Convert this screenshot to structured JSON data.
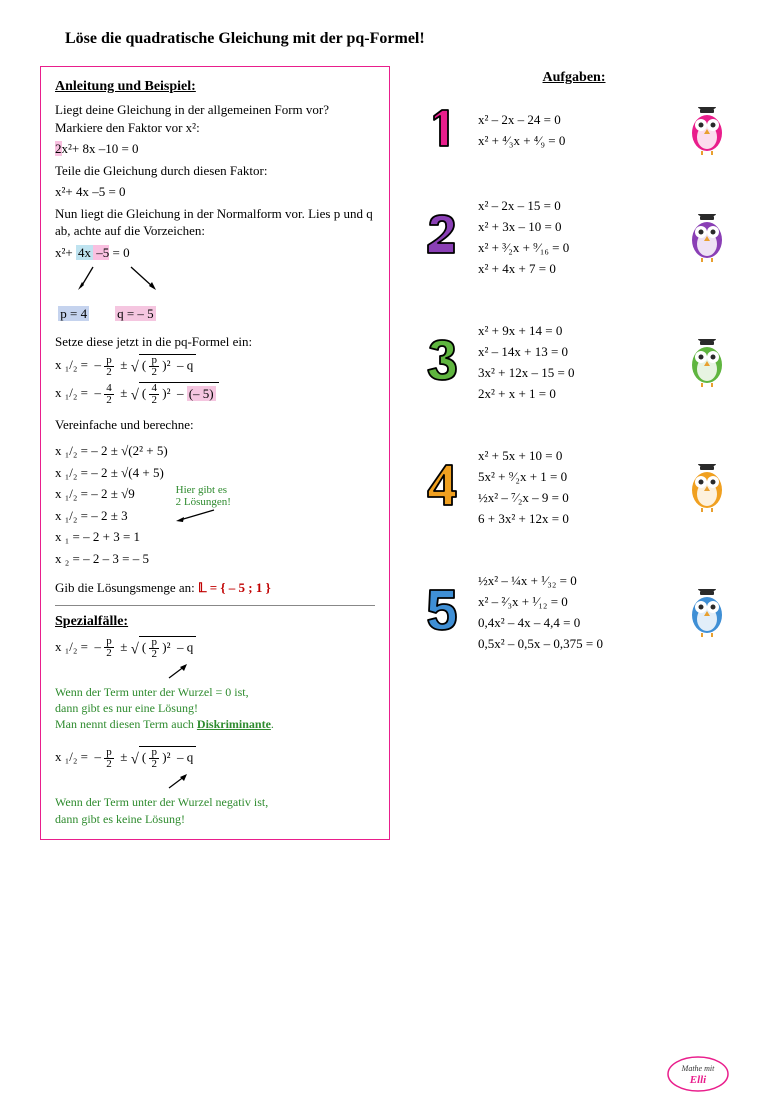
{
  "title": "Löse die quadratische Gleichung mit der pq-Formel!",
  "left": {
    "heading": "Anleitung und Beispiel:",
    "intro1": "Liegt deine Gleichung in der allgemeinen Form vor? Markiere den Faktor vor x²:",
    "eq1_prefix": "2",
    "eq1_rest": "x²+ 8x –10  =  0",
    "intro2": "Teile die Gleichung durch diesen Faktor:",
    "eq2": "x²+ 4x –5  =  0",
    "intro3": "Nun liegt die Gleichung in der Normalform vor. Lies p und q ab, achte auf die Vorzeichen:",
    "eq3_a": "x²+ ",
    "eq3_b": "4x",
    "eq3_c": " –5",
    "eq3_d": "  =  0",
    "p_label": "p = 4",
    "q_label": "q = – 5",
    "intro4": "Setze diese jetzt in die pq-Formel ein:",
    "formula_x12": "x ₁/₂  =",
    "intro5": "Vereinfache und berechne:",
    "simp1": "x ₁/₂  =  – 2  ±  √(2² + 5)",
    "simp2": "x ₁/₂  =  – 2  ±  √(4 + 5)",
    "simp3": "x ₁/₂  =  – 2  ±  √9",
    "simp4": "x ₁/₂  =  – 2  ±  3",
    "simp5": "x ₁  =  – 2  + 3  =  1",
    "simp6": "x ₂  =  – 2  – 3  =  – 5",
    "note_green1": "Hier gibt es",
    "note_green2": "2 Lösungen!",
    "intro6": "Gib die Lösungsmenge an:  ",
    "solution": "𝕃 = { – 5 ; 1 }",
    "special_heading": "Spezialfälle:",
    "special_text1a": "Wenn der Term unter der Wurzel = 0 ist,",
    "special_text1b": "dann gibt es nur eine Lösung!",
    "special_text1c": "Man nennt diesen Term auch ",
    "discriminant": "Diskriminante",
    "special_text2a": "Wenn der Term unter der Wurzel negativ ist,",
    "special_text2b": "dann gibt es keine Lösung!"
  },
  "right": {
    "heading": "Aufgaben:",
    "tasks": [
      {
        "num_color": "#e91e8c",
        "owl_color": "#e91e8c",
        "eqs": [
          "x² – 2x – 24  =  0",
          "x² + ⁴⁄₃x + ⁴⁄₉  =  0"
        ]
      },
      {
        "num_color": "#8a3fb5",
        "owl_color": "#8a3fb5",
        "eqs": [
          "x² – 2x – 15  =  0",
          "x² + 3x – 10  =  0",
          "x² + ³⁄₂x + ⁹⁄₁₆  =  0",
          "x² + 4x + 7  =  0"
        ]
      },
      {
        "num_color": "#5fb53f",
        "owl_color": "#5fb53f",
        "eqs": [
          "x² + 9x + 14  =  0",
          "x² – 14x + 13  =  0",
          "3x² + 12x – 15  =  0",
          "2x² + x + 1  =  0"
        ]
      },
      {
        "num_color": "#f0a020",
        "owl_color": "#f0a020",
        "eqs": [
          "x² + 5x + 10  =  0",
          "5x² + ⁹⁄₂x + 1  =  0",
          "½x² – ⁷⁄₂x – 9  =  0",
          "6 + 3x² + 12x  =  0"
        ]
      },
      {
        "num_color": "#3f8fd5",
        "owl_color": "#3f8fd5",
        "eqs": [
          "½x² – ¼x + ¹⁄₃₂  =  0",
          "x² – ²⁄₃x + ¹⁄₁₂  =  0",
          "0,4x² – 4x – 4,4  =  0",
          "0,5x² – 0,5x – 0,375  =  0"
        ]
      }
    ]
  },
  "logo": {
    "text1": "Mathe mit",
    "text2": "Elli"
  },
  "colors": {
    "box_border": "#e91e8c",
    "green": "#2e8b2e",
    "red": "#c00000",
    "pink_hl": "#f9c0e0",
    "blue_hl1": "#bfe3f0",
    "blue_hl2": "#c5d3ee",
    "pink_hl2": "#f5c6e0"
  }
}
